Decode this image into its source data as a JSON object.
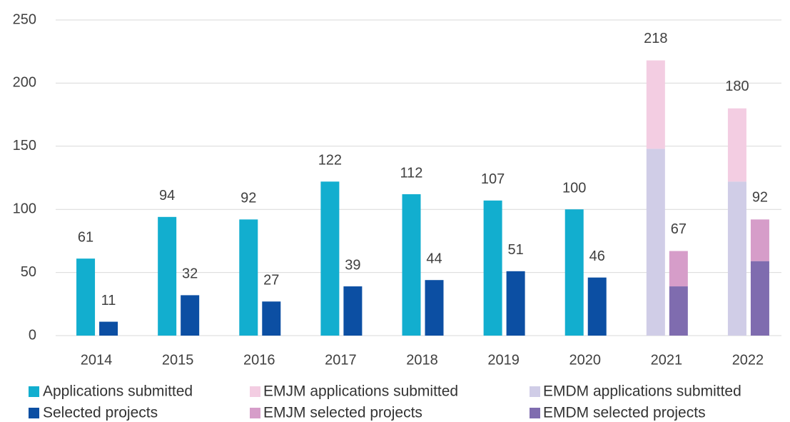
{
  "chart_data": {
    "type": "bar",
    "categories": [
      "2014",
      "2015",
      "2016",
      "2017",
      "2018",
      "2019",
      "2020",
      "2021",
      "2022"
    ],
    "series": [
      {
        "name": "Applications submitted",
        "color": "#12aecf",
        "stack": "applications",
        "values": [
          61,
          94,
          92,
          122,
          112,
          107,
          100,
          null,
          null
        ]
      },
      {
        "name": "Selected projects",
        "color": "#0c4fa3",
        "stack": "selected",
        "values": [
          11,
          32,
          27,
          39,
          44,
          51,
          46,
          null,
          null
        ]
      },
      {
        "name": "EMJM applications submitted",
        "color": "#f3cde2",
        "stack": "applications",
        "values": [
          null,
          null,
          null,
          null,
          null,
          null,
          null,
          70,
          58
        ]
      },
      {
        "name": "EMJM selected projects",
        "color": "#d69dc9",
        "stack": "selected",
        "values": [
          null,
          null,
          null,
          null,
          null,
          null,
          null,
          28,
          33
        ]
      },
      {
        "name": "EMDM applications submitted",
        "color": "#d0cde7",
        "stack": "applications",
        "values": [
          null,
          null,
          null,
          null,
          null,
          null,
          null,
          148,
          122
        ]
      },
      {
        "name": "EMDM selected projects",
        "color": "#7f6caf",
        "stack": "selected",
        "values": [
          null,
          null,
          null,
          null,
          null,
          null,
          null,
          39,
          59
        ]
      }
    ],
    "stack_labels": [
      {
        "stack": "applications",
        "values": [
          null,
          null,
          null,
          null,
          null,
          null,
          null,
          218,
          180
        ]
      },
      {
        "stack": "selected",
        "values": [
          null,
          null,
          null,
          null,
          null,
          null,
          null,
          67,
          92
        ]
      }
    ],
    "ylim": [
      0,
      250
    ],
    "yticks": [
      0,
      50,
      100,
      150,
      200,
      250
    ],
    "grid": true,
    "legend": "bottom"
  }
}
